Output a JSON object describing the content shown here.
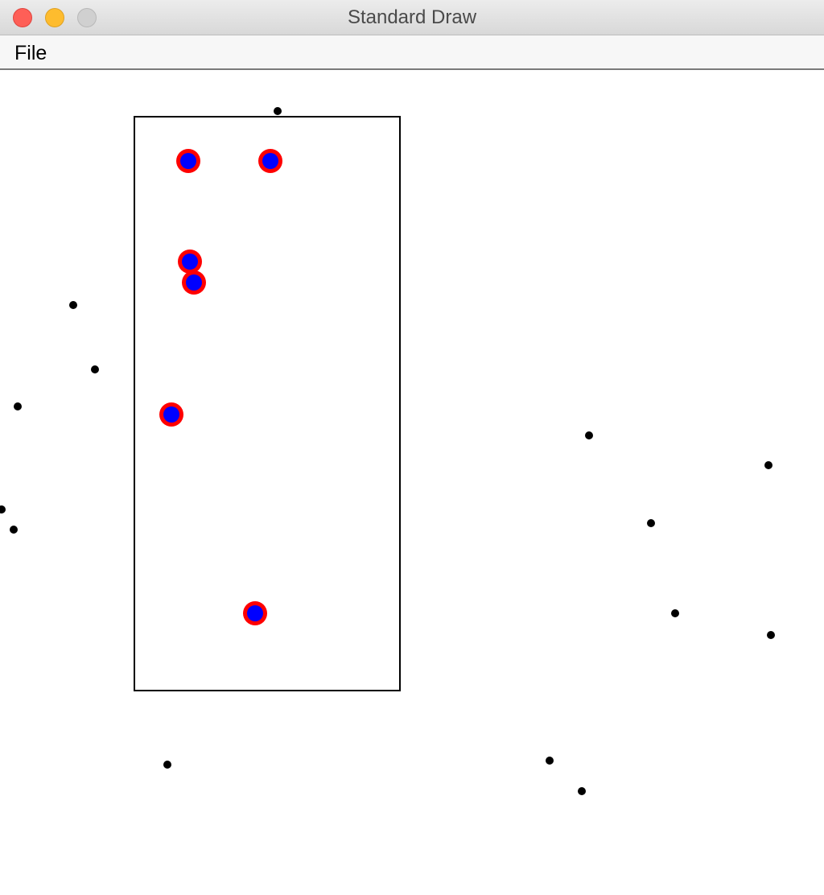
{
  "window": {
    "title": "Standard Draw",
    "controls": [
      "close",
      "minimize",
      "zoom"
    ]
  },
  "menubar": {
    "items": [
      {
        "label": "File"
      }
    ]
  },
  "colors": {
    "background": "#ffffff",
    "point": "#000000",
    "highlight_ring": "#ff0000",
    "highlight_fill": "#0000ff",
    "rectangle_stroke": "#000000"
  }
}
